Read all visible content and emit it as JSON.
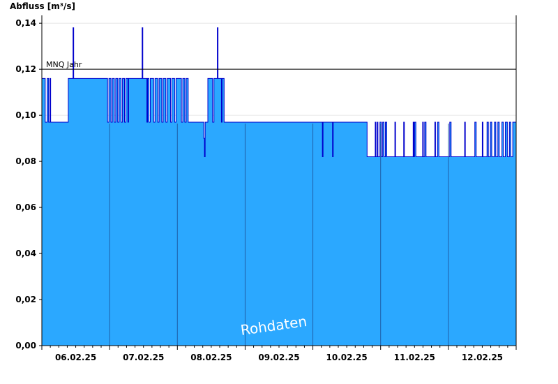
{
  "chart_data": {
    "type": "area",
    "ylabel": "Abfluss [m³/s]",
    "xlabel": "",
    "ylim": [
      0,
      0.1434
    ],
    "y_ticks": [
      "0,00",
      "0,02",
      "0,04",
      "0,06",
      "0,08",
      "0,10",
      "0,12",
      "0,14"
    ],
    "y_tick_values": [
      0,
      0.02,
      0.04,
      0.06,
      0.08,
      0.1,
      0.12,
      0.14
    ],
    "x_range_days": [
      0,
      7
    ],
    "x_tick_labels": [
      "06.02.25",
      "07.02.25",
      "08.02.25",
      "09.02.25",
      "10.02.25",
      "11.02.25",
      "12.02.25"
    ],
    "x_tick_days": [
      0.5,
      1.5,
      2.5,
      3.5,
      4.5,
      5.5,
      6.5
    ],
    "day_boundaries": [
      1,
      2,
      3,
      4,
      5,
      6
    ],
    "reference_line": {
      "label": "MNQ Jahr",
      "value": 0.12
    },
    "watermark": "Rohdaten",
    "fill_color": "#2ba8ff",
    "line_color": "#0000cc",
    "grid": "horizontal",
    "series": [
      {
        "step_levels": [
          0.097,
          0.116,
          0.116,
          0.097,
          0.116
        ],
        "points": [
          [
            0.0,
            0.116
          ],
          [
            0.05,
            0.097
          ],
          [
            0.08,
            0.116
          ],
          [
            0.1,
            0.097
          ],
          [
            0.12,
            0.116
          ],
          [
            0.13,
            0.097
          ],
          [
            0.39,
            0.116
          ],
          [
            0.45,
            0.116
          ],
          [
            0.46,
            0.138
          ],
          [
            0.47,
            0.116
          ],
          [
            0.97,
            0.097
          ],
          [
            0.99,
            0.116
          ],
          [
            1.02,
            0.097
          ],
          [
            1.04,
            0.116
          ],
          [
            1.07,
            0.097
          ],
          [
            1.09,
            0.116
          ],
          [
            1.12,
            0.097
          ],
          [
            1.14,
            0.116
          ],
          [
            1.17,
            0.097
          ],
          [
            1.19,
            0.116
          ],
          [
            1.22,
            0.097
          ],
          [
            1.24,
            0.116
          ],
          [
            1.27,
            0.097
          ],
          [
            1.28,
            0.116
          ],
          [
            1.44,
            0.116
          ],
          [
            1.47,
            0.116
          ],
          [
            1.48,
            0.138
          ],
          [
            1.49,
            0.116
          ],
          [
            1.55,
            0.097
          ],
          [
            1.56,
            0.116
          ],
          [
            1.58,
            0.097
          ],
          [
            1.6,
            0.116
          ],
          [
            1.65,
            0.097
          ],
          [
            1.67,
            0.116
          ],
          [
            1.71,
            0.097
          ],
          [
            1.73,
            0.116
          ],
          [
            1.77,
            0.097
          ],
          [
            1.79,
            0.116
          ],
          [
            1.83,
            0.097
          ],
          [
            1.85,
            0.116
          ],
          [
            1.9,
            0.097
          ],
          [
            1.92,
            0.116
          ],
          [
            1.96,
            0.097
          ],
          [
            1.98,
            0.116
          ],
          [
            2.06,
            0.097
          ],
          [
            2.08,
            0.116
          ],
          [
            2.11,
            0.097
          ],
          [
            2.13,
            0.116
          ],
          [
            2.16,
            0.097
          ],
          [
            2.39,
            0.09
          ],
          [
            2.4,
            0.082
          ],
          [
            2.41,
            0.097
          ],
          [
            2.45,
            0.116
          ],
          [
            2.52,
            0.097
          ],
          [
            2.54,
            0.116
          ],
          [
            2.58,
            0.116
          ],
          [
            2.59,
            0.138
          ],
          [
            2.6,
            0.116
          ],
          [
            2.65,
            0.097
          ],
          [
            2.66,
            0.116
          ],
          [
            2.69,
            0.097
          ],
          [
            4.14,
            0.082
          ],
          [
            4.15,
            0.097
          ],
          [
            4.29,
            0.082
          ],
          [
            4.3,
            0.097
          ],
          [
            4.8,
            0.082
          ],
          [
            4.92,
            0.097
          ],
          [
            4.93,
            0.082
          ],
          [
            4.95,
            0.097
          ],
          [
            4.96,
            0.082
          ],
          [
            4.99,
            0.097
          ],
          [
            5.01,
            0.082
          ],
          [
            5.03,
            0.097
          ],
          [
            5.05,
            0.082
          ],
          [
            5.07,
            0.097
          ],
          [
            5.09,
            0.082
          ],
          [
            5.21,
            0.097
          ],
          [
            5.22,
            0.082
          ],
          [
            5.34,
            0.097
          ],
          [
            5.35,
            0.082
          ],
          [
            5.48,
            0.097
          ],
          [
            5.49,
            0.082
          ],
          [
            5.5,
            0.097
          ],
          [
            5.52,
            0.082
          ],
          [
            5.62,
            0.097
          ],
          [
            5.63,
            0.082
          ],
          [
            5.65,
            0.097
          ],
          [
            5.67,
            0.082
          ],
          [
            5.8,
            0.097
          ],
          [
            5.81,
            0.082
          ],
          [
            5.84,
            0.097
          ],
          [
            5.86,
            0.082
          ],
          [
            6.02,
            0.097
          ],
          [
            6.04,
            0.082
          ],
          [
            6.24,
            0.097
          ],
          [
            6.25,
            0.082
          ],
          [
            6.39,
            0.097
          ],
          [
            6.41,
            0.082
          ],
          [
            6.5,
            0.097
          ],
          [
            6.51,
            0.082
          ],
          [
            6.57,
            0.097
          ],
          [
            6.59,
            0.082
          ],
          [
            6.62,
            0.097
          ],
          [
            6.64,
            0.082
          ],
          [
            6.68,
            0.097
          ],
          [
            6.7,
            0.082
          ],
          [
            6.73,
            0.097
          ],
          [
            6.75,
            0.082
          ],
          [
            6.79,
            0.097
          ],
          [
            6.81,
            0.082
          ],
          [
            6.84,
            0.097
          ],
          [
            6.87,
            0.082
          ],
          [
            6.9,
            0.097
          ],
          [
            6.92,
            0.082
          ],
          [
            6.95,
            0.097
          ],
          [
            7.0,
            0.097
          ]
        ]
      }
    ]
  }
}
